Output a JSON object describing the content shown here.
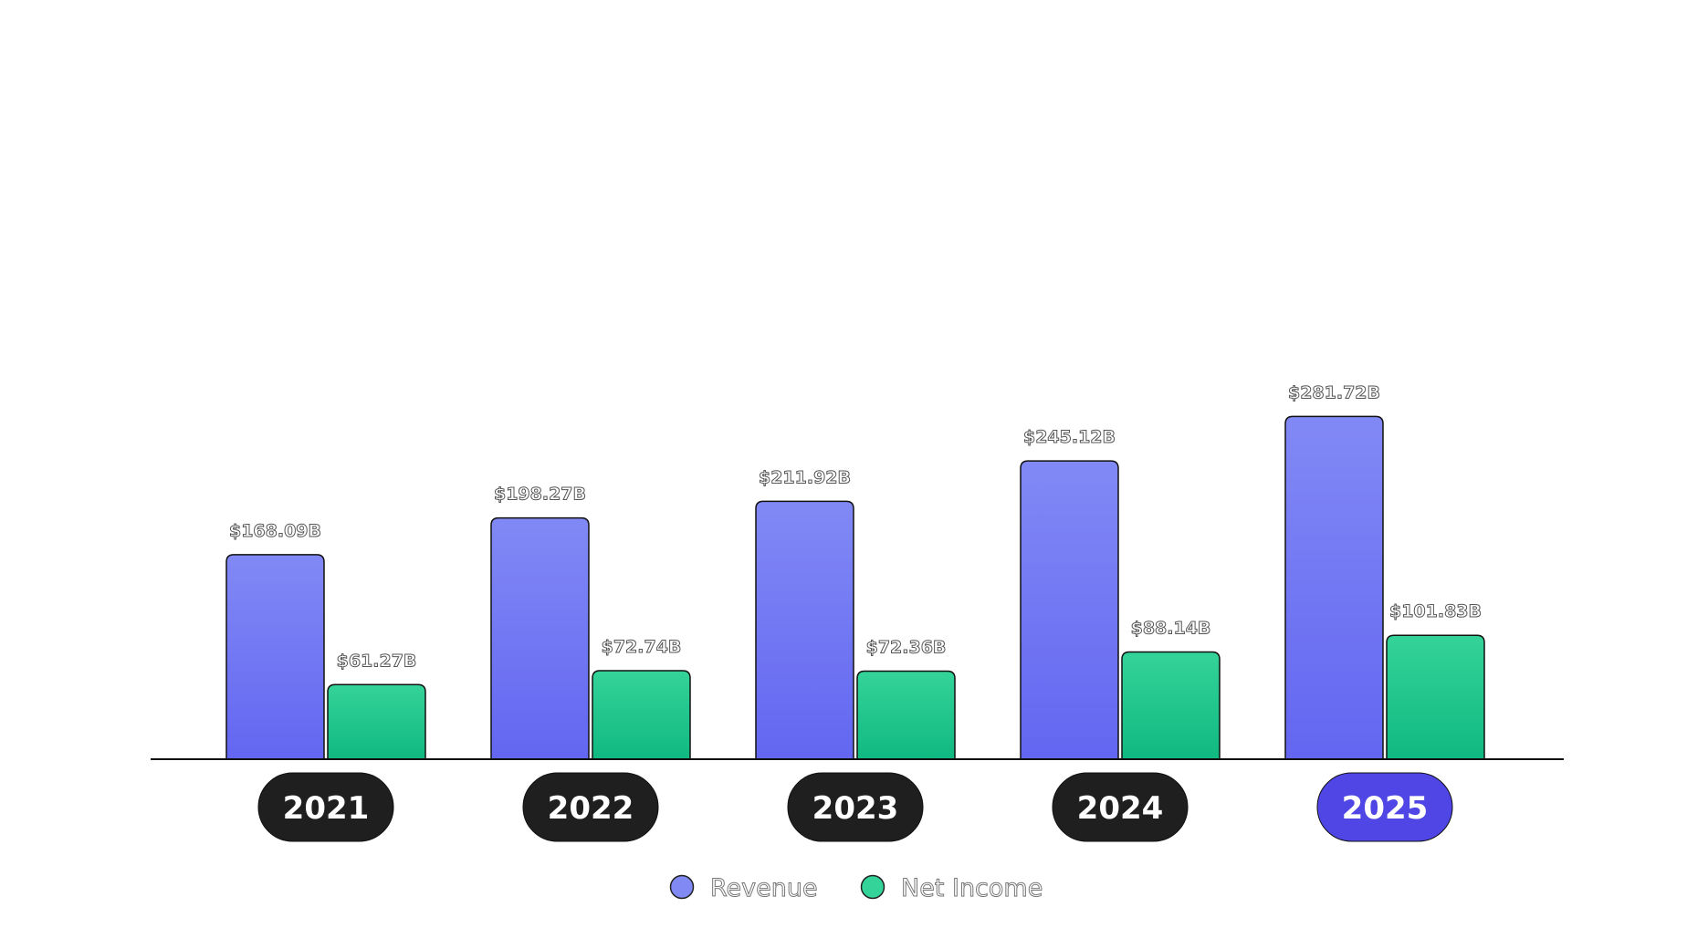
{
  "chart_data": {
    "type": "bar",
    "categories": [
      "2021",
      "2022",
      "2023",
      "2024",
      "2025"
    ],
    "highlighted_category": "2025",
    "series": [
      {
        "name": "Revenue",
        "values": [
          168.09,
          198.27,
          211.92,
          245.12,
          281.72
        ],
        "labels": [
          "$168.09B",
          "$198.27B",
          "$211.92B",
          "$245.12B",
          "$281.72B"
        ],
        "color_top": "#8189f5",
        "color_bottom": "#6366f1"
      },
      {
        "name": "Net Income",
        "values": [
          61.27,
          72.74,
          72.36,
          88.14,
          101.83
        ],
        "labels": [
          "$61.27B",
          "$72.74B",
          "$72.36B",
          "$88.14B",
          "$101.83B"
        ],
        "color_top": "#34d399",
        "color_bottom": "#10b981"
      }
    ],
    "ylim": [
      0,
      300
    ],
    "grid": false,
    "legend_position": "bottom-center",
    "colors": {
      "pill_default": "#1f1f1f",
      "pill_highlight": "#4f46e5",
      "axis": "#111111"
    }
  }
}
